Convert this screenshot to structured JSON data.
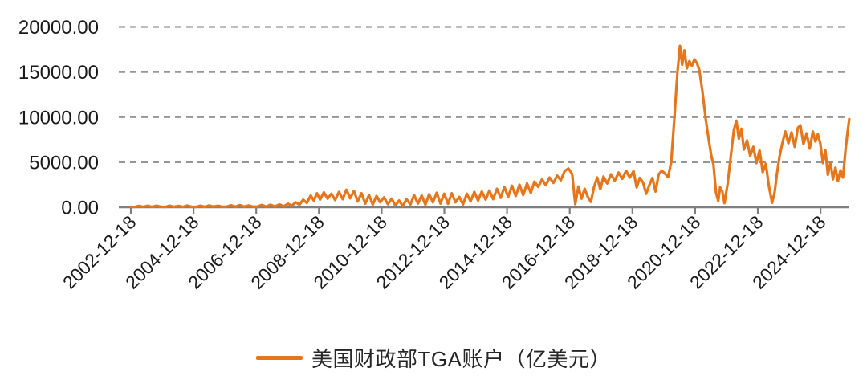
{
  "colors": {
    "line": "#E6761C",
    "grid": "#969696",
    "axis": "#7F7F7F",
    "text": "#1A1A1A",
    "background": "#FFFFFF"
  },
  "chart_data": {
    "type": "line",
    "title": "",
    "legend": "美国财政部TGA账户（亿美元）",
    "legend_position": "bottom",
    "ylabel": "",
    "xlabel": "",
    "ylim": [
      0,
      20000
    ],
    "grid": "horizontal-dashed",
    "y_ticks": [
      {
        "value": 0,
        "label": "0.00"
      },
      {
        "value": 5000,
        "label": "5000.00"
      },
      {
        "value": 10000,
        "label": "10000.00"
      },
      {
        "value": 15000,
        "label": "15000.00"
      },
      {
        "value": 20000,
        "label": "20000.00"
      }
    ],
    "x_tick_labels": [
      "2002-12-18",
      "2004-12-18",
      "2006-12-18",
      "2008-12-18",
      "2010-12-18",
      "2012-12-18",
      "2014-12-18",
      "2016-12-18",
      "2018-12-18",
      "2020-12-18",
      "2022-12-18",
      "2024-12-18"
    ],
    "series": [
      {
        "name": "美国财政部TGA账户（亿美元）",
        "color": "#E6761C",
        "x_unit": "decimal_year",
        "y_unit": "亿美元",
        "points": [
          [
            2002.96,
            60
          ],
          [
            2003.08,
            30
          ],
          [
            2003.22,
            150
          ],
          [
            2003.36,
            50
          ],
          [
            2003.5,
            160
          ],
          [
            2003.64,
            40
          ],
          [
            2003.78,
            170
          ],
          [
            2003.92,
            60
          ],
          [
            2004.06,
            35
          ],
          [
            2004.2,
            180
          ],
          [
            2004.34,
            55
          ],
          [
            2004.48,
            150
          ],
          [
            2004.62,
            45
          ],
          [
            2004.76,
            190
          ],
          [
            2004.9,
            65
          ],
          [
            2005.04,
            40
          ],
          [
            2005.18,
            170
          ],
          [
            2005.32,
            55
          ],
          [
            2005.46,
            200
          ],
          [
            2005.6,
            60
          ],
          [
            2005.74,
            180
          ],
          [
            2005.88,
            50
          ],
          [
            2006.02,
            70
          ],
          [
            2006.16,
            220
          ],
          [
            2006.3,
            60
          ],
          [
            2006.44,
            240
          ],
          [
            2006.58,
            70
          ],
          [
            2006.72,
            200
          ],
          [
            2006.86,
            60
          ],
          [
            2007.0,
            80
          ],
          [
            2007.14,
            260
          ],
          [
            2007.28,
            70
          ],
          [
            2007.42,
            280
          ],
          [
            2007.56,
            90
          ],
          [
            2007.7,
            320
          ],
          [
            2007.84,
            110
          ],
          [
            2007.98,
            380
          ],
          [
            2008.1,
            180
          ],
          [
            2008.22,
            550
          ],
          [
            2008.34,
            280
          ],
          [
            2008.46,
            850
          ],
          [
            2008.58,
            480
          ],
          [
            2008.7,
            1300
          ],
          [
            2008.8,
            750
          ],
          [
            2008.9,
            1550
          ],
          [
            2009.0,
            850
          ],
          [
            2009.12,
            1650
          ],
          [
            2009.24,
            950
          ],
          [
            2009.36,
            1500
          ],
          [
            2009.48,
            800
          ],
          [
            2009.6,
            1700
          ],
          [
            2009.72,
            900
          ],
          [
            2009.84,
            1950
          ],
          [
            2009.96,
            1000
          ],
          [
            2010.08,
            1800
          ],
          [
            2010.2,
            650
          ],
          [
            2010.32,
            1550
          ],
          [
            2010.44,
            400
          ],
          [
            2010.56,
            1350
          ],
          [
            2010.68,
            300
          ],
          [
            2010.8,
            1250
          ],
          [
            2010.92,
            550
          ],
          [
            2011.04,
            1100
          ],
          [
            2011.16,
            350
          ],
          [
            2011.28,
            950
          ],
          [
            2011.4,
            200
          ],
          [
            2011.52,
            750
          ],
          [
            2011.64,
            130
          ],
          [
            2011.76,
            900
          ],
          [
            2011.88,
            300
          ],
          [
            2012.0,
            1350
          ],
          [
            2012.12,
            400
          ],
          [
            2012.24,
            1300
          ],
          [
            2012.36,
            280
          ],
          [
            2012.48,
            1450
          ],
          [
            2012.6,
            550
          ],
          [
            2012.72,
            1600
          ],
          [
            2012.84,
            420
          ],
          [
            2012.96,
            1500
          ],
          [
            2013.08,
            380
          ],
          [
            2013.2,
            1550
          ],
          [
            2013.32,
            550
          ],
          [
            2013.44,
            1150
          ],
          [
            2013.56,
            320
          ],
          [
            2013.68,
            1500
          ],
          [
            2013.8,
            650
          ],
          [
            2013.92,
            1700
          ],
          [
            2014.04,
            750
          ],
          [
            2014.16,
            1750
          ],
          [
            2014.28,
            850
          ],
          [
            2014.4,
            1850
          ],
          [
            2014.52,
            900
          ],
          [
            2014.64,
            2050
          ],
          [
            2014.76,
            1050
          ],
          [
            2014.88,
            2250
          ],
          [
            2015.0,
            1150
          ],
          [
            2015.12,
            2400
          ],
          [
            2015.24,
            1250
          ],
          [
            2015.36,
            2500
          ],
          [
            2015.48,
            1350
          ],
          [
            2015.6,
            2650
          ],
          [
            2015.72,
            1600
          ],
          [
            2015.84,
            2850
          ],
          [
            2015.96,
            2250
          ],
          [
            2016.08,
            3100
          ],
          [
            2016.2,
            2450
          ],
          [
            2016.32,
            3300
          ],
          [
            2016.44,
            2700
          ],
          [
            2016.56,
            3500
          ],
          [
            2016.68,
            3000
          ],
          [
            2016.8,
            4000
          ],
          [
            2016.92,
            4300
          ],
          [
            2017.04,
            3700
          ],
          [
            2017.14,
            350
          ],
          [
            2017.24,
            2300
          ],
          [
            2017.34,
            950
          ],
          [
            2017.44,
            2050
          ],
          [
            2017.54,
            1150
          ],
          [
            2017.64,
            600
          ],
          [
            2017.74,
            2250
          ],
          [
            2017.84,
            3300
          ],
          [
            2017.94,
            2000
          ],
          [
            2018.04,
            3400
          ],
          [
            2018.16,
            2650
          ],
          [
            2018.28,
            3650
          ],
          [
            2018.4,
            2950
          ],
          [
            2018.52,
            3850
          ],
          [
            2018.64,
            3150
          ],
          [
            2018.76,
            4050
          ],
          [
            2018.88,
            3300
          ],
          [
            2019.0,
            4000
          ],
          [
            2019.1,
            2200
          ],
          [
            2019.2,
            3250
          ],
          [
            2019.3,
            2750
          ],
          [
            2019.4,
            1500
          ],
          [
            2019.5,
            2450
          ],
          [
            2019.6,
            3250
          ],
          [
            2019.7,
            1750
          ],
          [
            2019.8,
            3650
          ],
          [
            2019.9,
            4050
          ],
          [
            2020.0,
            3750
          ],
          [
            2020.1,
            3350
          ],
          [
            2020.2,
            5000
          ],
          [
            2020.3,
            9800
          ],
          [
            2020.4,
            15000
          ],
          [
            2020.48,
            17900
          ],
          [
            2020.55,
            15800
          ],
          [
            2020.62,
            17400
          ],
          [
            2020.7,
            15400
          ],
          [
            2020.78,
            16200
          ],
          [
            2020.86,
            15700
          ],
          [
            2020.94,
            16400
          ],
          [
            2021.02,
            16000
          ],
          [
            2021.1,
            15200
          ],
          [
            2021.2,
            12800
          ],
          [
            2021.3,
            9800
          ],
          [
            2021.4,
            7400
          ],
          [
            2021.48,
            5700
          ],
          [
            2021.55,
            4700
          ],
          [
            2021.63,
            1600
          ],
          [
            2021.7,
            700
          ],
          [
            2021.76,
            2200
          ],
          [
            2021.83,
            1800
          ],
          [
            2021.9,
            450
          ],
          [
            2022.0,
            2600
          ],
          [
            2022.1,
            5600
          ],
          [
            2022.2,
            8600
          ],
          [
            2022.28,
            9600
          ],
          [
            2022.36,
            7600
          ],
          [
            2022.44,
            8700
          ],
          [
            2022.52,
            6400
          ],
          [
            2022.62,
            7400
          ],
          [
            2022.72,
            5700
          ],
          [
            2022.82,
            6700
          ],
          [
            2022.92,
            4900
          ],
          [
            2023.02,
            6300
          ],
          [
            2023.12,
            3900
          ],
          [
            2023.22,
            4800
          ],
          [
            2023.32,
            2300
          ],
          [
            2023.42,
            500
          ],
          [
            2023.5,
            1700
          ],
          [
            2023.58,
            3900
          ],
          [
            2023.66,
            5700
          ],
          [
            2023.74,
            7000
          ],
          [
            2023.84,
            8400
          ],
          [
            2023.94,
            7100
          ],
          [
            2024.04,
            8300
          ],
          [
            2024.14,
            6700
          ],
          [
            2024.24,
            8800
          ],
          [
            2024.32,
            9100
          ],
          [
            2024.42,
            7000
          ],
          [
            2024.52,
            8200
          ],
          [
            2024.62,
            6500
          ],
          [
            2024.72,
            8400
          ],
          [
            2024.8,
            7300
          ],
          [
            2024.88,
            8100
          ],
          [
            2024.96,
            7000
          ],
          [
            2025.04,
            4900
          ],
          [
            2025.12,
            6300
          ],
          [
            2025.2,
            3600
          ],
          [
            2025.28,
            5000
          ],
          [
            2025.36,
            3100
          ],
          [
            2025.44,
            4400
          ],
          [
            2025.52,
            2900
          ],
          [
            2025.6,
            4100
          ],
          [
            2025.68,
            3300
          ],
          [
            2025.76,
            6300
          ],
          [
            2025.83,
            8400
          ],
          [
            2025.88,
            9780
          ]
        ]
      }
    ]
  }
}
